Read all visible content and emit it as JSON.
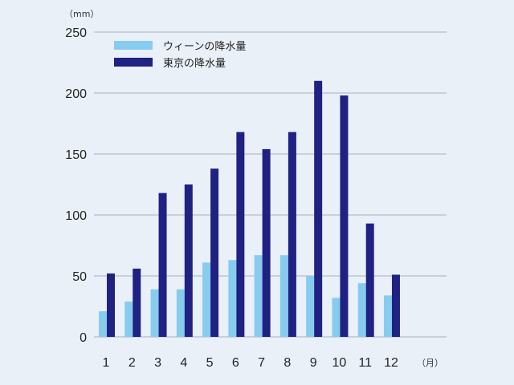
{
  "chart_data": {
    "type": "bar",
    "y_unit": "（mm）",
    "x_unit": "（月）",
    "categories": [
      "1",
      "2",
      "3",
      "4",
      "5",
      "6",
      "7",
      "8",
      "9",
      "10",
      "11",
      "12"
    ],
    "series": [
      {
        "name": "ウィーンの降水量",
        "color": "#87ccef",
        "values": [
          21,
          29,
          39,
          39,
          61,
          63,
          67,
          67,
          50,
          32,
          44,
          34
        ]
      },
      {
        "name": "東京の降水量",
        "color": "#1f2183",
        "values": [
          52,
          56,
          118,
          125,
          138,
          168,
          154,
          168,
          210,
          198,
          93,
          51
        ]
      }
    ],
    "y_ticks": [
      "0",
      "50",
      "100",
      "150",
      "200",
      "250"
    ],
    "ylim": [
      0,
      250
    ],
    "grid": true,
    "legend_position": "top-left"
  }
}
